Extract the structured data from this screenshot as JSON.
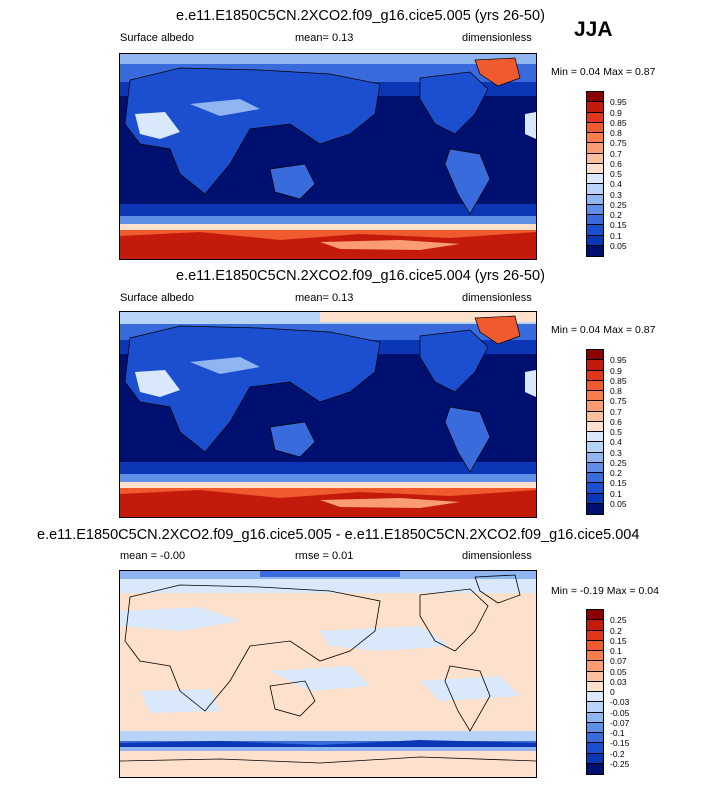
{
  "season": "JJA",
  "panels": [
    {
      "title": "e.e11.E1850C5CN.2XCO2.f09_g16.cice5.005 (yrs 26-50)",
      "left_label": "Surface albedo",
      "center_label": "mean=  0.13",
      "right_label": "dimensionless",
      "minmax": "Min =  0.04 Max =  0.87"
    },
    {
      "title": "e.e11.E1850C5CN.2XCO2.f09_g16.cice5.004 (yrs 26-50)",
      "left_label": "Surface albedo",
      "center_label": "mean=  0.13",
      "right_label": "dimensionless",
      "minmax": "Min =  0.04 Max =  0.87"
    },
    {
      "title": "e.e11.E1850C5CN.2XCO2.f09_g16.cice5.005 - e.e11.E1850C5CN.2XCO2.f09_g16.cice5.004",
      "left_label": "mean = -0.00",
      "center_label": "rmse =  0.01",
      "right_label": "dimensionless",
      "minmax": "Min = -0.19 Max =  0.04"
    }
  ],
  "chart_data": [
    {
      "type": "heatmap",
      "variable": "Surface albedo",
      "mean": 0.13,
      "min": 0.04,
      "max": 0.87,
      "colorbar": {
        "levels": [
          "0.95",
          "0.9",
          "0.85",
          "0.8",
          "0.75",
          "0.7",
          "0.6",
          "0.5",
          "0.4",
          "0.3",
          "0.25",
          "0.2",
          "0.15",
          "0.1",
          "0.05"
        ],
        "colors": [
          "#8b0000",
          "#c41a0c",
          "#e0361c",
          "#ef5a2e",
          "#f77d4d",
          "#fa9d73",
          "#fcbf9d",
          "#fde1cc",
          "#d9e8fb",
          "#b7d3f8",
          "#8fb6f1",
          "#5f8ee6",
          "#3a6bdc",
          "#1b4fd0",
          "#0b36b5",
          "#001070"
        ]
      }
    },
    {
      "type": "heatmap",
      "variable": "Surface albedo",
      "mean": 0.13,
      "min": 0.04,
      "max": 0.87,
      "colorbar": {
        "levels": [
          "0.95",
          "0.9",
          "0.85",
          "0.8",
          "0.75",
          "0.7",
          "0.6",
          "0.5",
          "0.4",
          "0.3",
          "0.25",
          "0.2",
          "0.15",
          "0.1",
          "0.05"
        ],
        "colors": [
          "#8b0000",
          "#c41a0c",
          "#e0361c",
          "#ef5a2e",
          "#f77d4d",
          "#fa9d73",
          "#fcbf9d",
          "#fde1cc",
          "#d9e8fb",
          "#b7d3f8",
          "#8fb6f1",
          "#5f8ee6",
          "#3a6bdc",
          "#1b4fd0",
          "#0b36b5",
          "#001070"
        ]
      }
    },
    {
      "type": "heatmap",
      "variable": "difference",
      "mean": -0.0,
      "rmse": 0.01,
      "min": -0.19,
      "max": 0.04,
      "colorbar": {
        "levels": [
          "0.25",
          "0.2",
          "0.15",
          "0.1",
          "0.07",
          "0.05",
          "0.03",
          "0",
          "-0.03",
          "-0.05",
          "-0.07",
          "-0.1",
          "-0.15",
          "-0.2",
          "-0.25"
        ],
        "colors": [
          "#8b0000",
          "#c41a0c",
          "#e0361c",
          "#ef5a2e",
          "#f77d4d",
          "#fa9d73",
          "#fcbf9d",
          "#fde1cc",
          "#d9e8fb",
          "#b7d3f8",
          "#8fb6f1",
          "#5f8ee6",
          "#3a6bdc",
          "#1b4fd0",
          "#0b36b5",
          "#001070"
        ]
      }
    }
  ]
}
